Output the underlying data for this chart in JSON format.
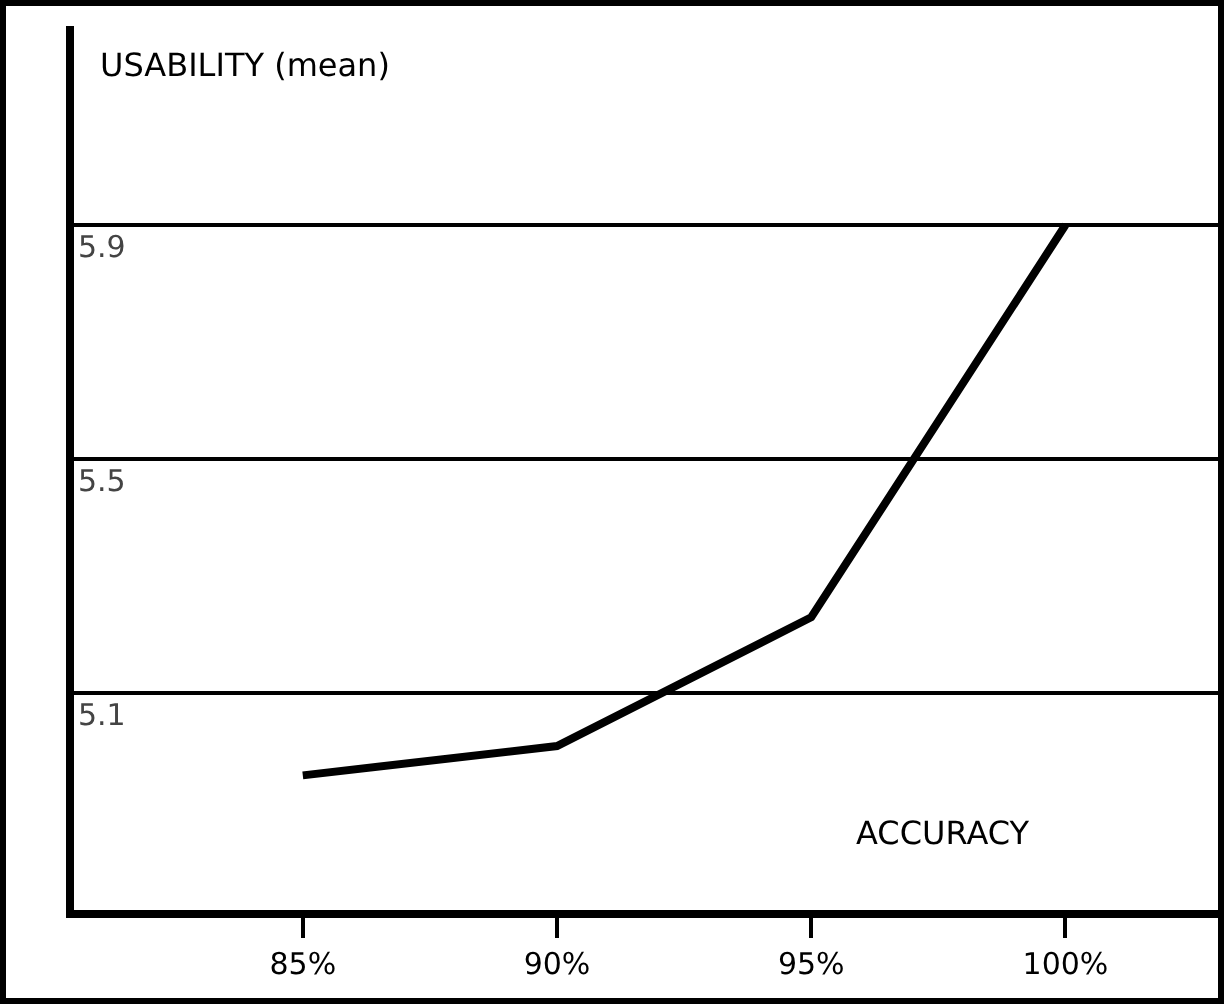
{
  "chart_data": {
    "type": "line",
    "xlabel": "ACCURACY",
    "ylabel": "USABILITY (mean)",
    "x": [
      85,
      90,
      95,
      100
    ],
    "series": [
      {
        "color": "#000000",
        "values": [
          4.96,
          5.01,
          5.23,
          5.9
        ]
      }
    ],
    "xlim": [
      80.5,
      103
    ],
    "xticks": [
      {
        "value": 85,
        "label": "85%"
      },
      {
        "value": 90,
        "label": "90%"
      },
      {
        "value": 95,
        "label": "95%"
      },
      {
        "value": 100,
        "label": "100%"
      }
    ],
    "ylim": [
      4.73,
      6.24
    ],
    "yticks": [
      5.1,
      5.5,
      5.9
    ],
    "grid": "y",
    "marker": "none",
    "line_style": "solid"
  }
}
